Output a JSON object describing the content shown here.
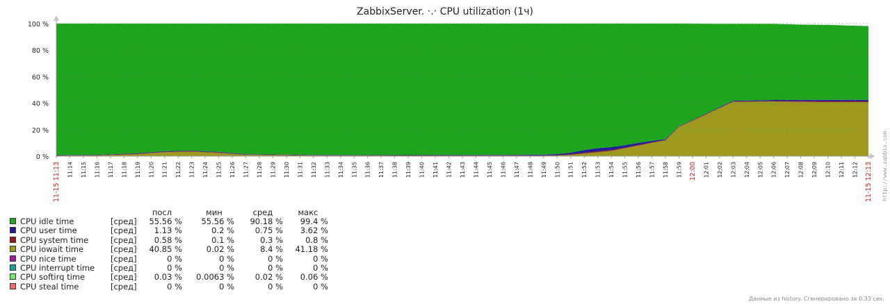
{
  "chart_data": {
    "type": "area",
    "title": "ZabbixServer.  ‧․‧  CPU utilization (1ч)",
    "ylim": [
      0,
      100
    ],
    "y_ticks": [
      "0 %",
      "20 %",
      "40 %",
      "60 %",
      "80 %",
      "100 %"
    ],
    "x_ticks": [
      "11:14",
      "11:15",
      "11:16",
      "11:17",
      "11:18",
      "11:19",
      "11:20",
      "11:21",
      "11:22",
      "11:23",
      "11:24",
      "11:25",
      "11:26",
      "11:27",
      "11:28",
      "11:29",
      "11:30",
      "11:31",
      "11:32",
      "11:33",
      "11:34",
      "11:35",
      "11:36",
      "11:37",
      "11:38",
      "11:39",
      "11:40",
      "11:41",
      "11:42",
      "11:43",
      "11:44",
      "11:45",
      "11:46",
      "11:47",
      "11:48",
      "11:49",
      "11:50",
      "11:51",
      "11:52",
      "11:53",
      "11:54",
      "11:55",
      "11:56",
      "11:57",
      "11:58",
      "11:59",
      "12:00",
      "12:01",
      "12:02",
      "12:03",
      "12:04",
      "12:05",
      "12:06",
      "12:07",
      "12:08",
      "12:09",
      "12:10",
      "12:11",
      "12:12"
    ],
    "x_ticks_highlight": [
      "12:00"
    ],
    "x_start_label": "11-15 11:13",
    "x_end_label": "11-15 12:13",
    "grid": true,
    "x_minutes": [
      0,
      3,
      6,
      8,
      10,
      12,
      14,
      16,
      18,
      20,
      26,
      34,
      36,
      37,
      38,
      39,
      40,
      41,
      42,
      43,
      44,
      45,
      46,
      50,
      53,
      55,
      57,
      60
    ],
    "series": [
      {
        "key": "iowait",
        "color": "#9e9a1f",
        "values": [
          0.3,
          0.5,
          1.5,
          3.0,
          3.5,
          2.5,
          1.0,
          0.8,
          0.5,
          0.4,
          0.3,
          0.3,
          0.3,
          0.5,
          1.0,
          2.0,
          3.0,
          4.0,
          6.0,
          8.0,
          10.0,
          12.0,
          22.0,
          41.0,
          41.2,
          41.0,
          40.8,
          40.85
        ]
      },
      {
        "key": "system",
        "color": "#96141e",
        "values": [
          0.2,
          0.2,
          0.3,
          0.3,
          0.3,
          0.3,
          0.2,
          0.2,
          0.2,
          0.2,
          0.2,
          0.3,
          0.3,
          0.3,
          0.5,
          0.6,
          0.6,
          0.6,
          0.5,
          0.5,
          0.5,
          0.3,
          0.3,
          0.3,
          0.4,
          0.5,
          0.6,
          0.58
        ]
      },
      {
        "key": "user",
        "color": "#1e1e96",
        "values": [
          0.3,
          0.3,
          0.4,
          0.4,
          0.4,
          0.4,
          0.3,
          0.3,
          0.3,
          0.3,
          0.3,
          0.4,
          0.5,
          0.8,
          1.2,
          2.0,
          2.5,
          2.2,
          1.8,
          1.5,
          1.0,
          0.5,
          0.3,
          0.5,
          0.8,
          1.0,
          1.1,
          1.13
        ]
      },
      {
        "key": "idle",
        "color": "#1ea51e",
        "values": [
          99.2,
          99.0,
          97.8,
          96.3,
          95.8,
          96.8,
          98.5,
          98.7,
          99.0,
          99.1,
          99.2,
          99.0,
          98.9,
          98.4,
          97.3,
          95.4,
          93.9,
          93.2,
          91.7,
          90.0,
          88.5,
          87.2,
          77.4,
          58.0,
          57.4,
          56.7,
          56.5,
          55.56
        ]
      }
    ],
    "legend": {
      "headers": {
        "last": "посл",
        "min": "мин",
        "avg": "сред",
        "max": "макс"
      },
      "rows": [
        {
          "name": "CPU idle time",
          "fn": "[сред]",
          "last": "55.56 %",
          "min": "55.56 %",
          "avg": "90.18 %",
          "max": "99.4 %",
          "color": "#1ea51e"
        },
        {
          "name": "CPU user time",
          "fn": "[сред]",
          "last": "1.13 %",
          "min": "0.2 %",
          "avg": "0.75 %",
          "max": "3.62 %",
          "color": "#1e1e96"
        },
        {
          "name": "CPU system time",
          "fn": "[сред]",
          "last": "0.58 %",
          "min": "0.1 %",
          "avg": "0.3 %",
          "max": "0.8 %",
          "color": "#96141e"
        },
        {
          "name": "CPU iowait time",
          "fn": "[сред]",
          "last": "40.85 %",
          "min": "0.02 %",
          "avg": "8.4 %",
          "max": "41.18 %",
          "color": "#9e9a1f"
        },
        {
          "name": "CPU nice time",
          "fn": "[сред]",
          "last": "0 %",
          "min": "0 %",
          "avg": "0 %",
          "max": "0 %",
          "color": "#a01ea0"
        },
        {
          "name": "CPU interrupt time",
          "fn": "[сред]",
          "last": "0 %",
          "min": "0 %",
          "avg": "0 %",
          "max": "0 %",
          "color": "#1e9ea0"
        },
        {
          "name": "CPU softirq time",
          "fn": "[сред]",
          "last": "0.03 %",
          "min": "0.0063 %",
          "avg": "0.02 %",
          "max": "0.06 %",
          "color": "#6ef06e"
        },
        {
          "name": "CPU steal time",
          "fn": "[сред]",
          "last": "0 %",
          "min": "0 %",
          "avg": "0 %",
          "max": "0 %",
          "color": "#f06e6e"
        }
      ]
    }
  },
  "watermark": "http://www.zabbix.com",
  "footer": "Данные из history. Сгенерировано за 0.33 сек."
}
